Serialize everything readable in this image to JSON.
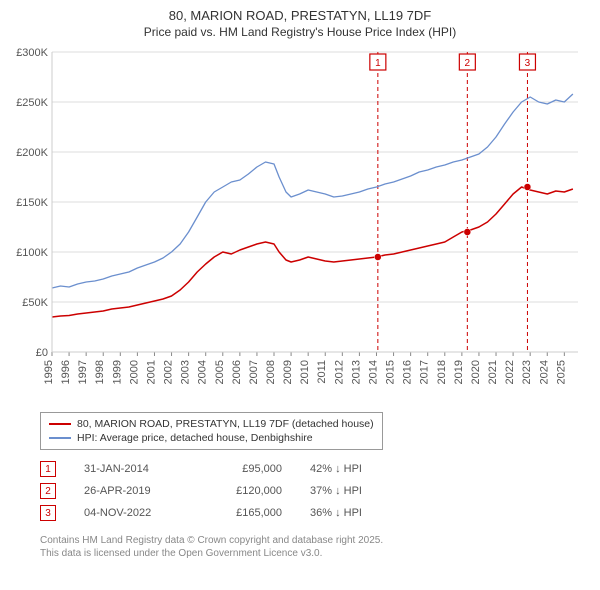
{
  "title": "80, MARION ROAD, PRESTATYN, LL19 7DF",
  "subtitle": "Price paid vs. HM Land Registry's House Price Index (HPI)",
  "chart": {
    "type": "line",
    "background_color": "#ffffff",
    "grid_color": "#dddddd",
    "x_range": [
      1995,
      2025.8
    ],
    "y_range": [
      0,
      300000
    ],
    "y_ticks": [
      0,
      50000,
      100000,
      150000,
      200000,
      250000,
      300000
    ],
    "y_tick_labels": [
      "£0",
      "£50K",
      "£100K",
      "£150K",
      "£200K",
      "£250K",
      "£300K"
    ],
    "x_ticks": [
      1995,
      1996,
      1997,
      1998,
      1999,
      2000,
      2001,
      2002,
      2003,
      2004,
      2005,
      2006,
      2007,
      2008,
      2009,
      2010,
      2011,
      2012,
      2013,
      2014,
      2015,
      2016,
      2017,
      2018,
      2019,
      2020,
      2021,
      2022,
      2023,
      2024,
      2025
    ],
    "series": [
      {
        "id": "hpi",
        "label": "HPI: Average price, detached house, Denbighshire",
        "color": "#6b8fce",
        "line_width": 1.3,
        "data": [
          [
            1995,
            64000
          ],
          [
            1995.5,
            66000
          ],
          [
            1996,
            65000
          ],
          [
            1996.5,
            68000
          ],
          [
            1997,
            70000
          ],
          [
            1997.5,
            71000
          ],
          [
            1998,
            73000
          ],
          [
            1998.5,
            76000
          ],
          [
            1999,
            78000
          ],
          [
            1999.5,
            80000
          ],
          [
            2000,
            84000
          ],
          [
            2000.5,
            87000
          ],
          [
            2001,
            90000
          ],
          [
            2001.5,
            94000
          ],
          [
            2002,
            100000
          ],
          [
            2002.5,
            108000
          ],
          [
            2003,
            120000
          ],
          [
            2003.5,
            135000
          ],
          [
            2004,
            150000
          ],
          [
            2004.5,
            160000
          ],
          [
            2005,
            165000
          ],
          [
            2005.5,
            170000
          ],
          [
            2006,
            172000
          ],
          [
            2006.5,
            178000
          ],
          [
            2007,
            185000
          ],
          [
            2007.5,
            190000
          ],
          [
            2008,
            188000
          ],
          [
            2008.3,
            175000
          ],
          [
            2008.7,
            160000
          ],
          [
            2009,
            155000
          ],
          [
            2009.5,
            158000
          ],
          [
            2010,
            162000
          ],
          [
            2010.5,
            160000
          ],
          [
            2011,
            158000
          ],
          [
            2011.5,
            155000
          ],
          [
            2012,
            156000
          ],
          [
            2012.5,
            158000
          ],
          [
            2013,
            160000
          ],
          [
            2013.5,
            163000
          ],
          [
            2014,
            165000
          ],
          [
            2014.5,
            168000
          ],
          [
            2015,
            170000
          ],
          [
            2015.5,
            173000
          ],
          [
            2016,
            176000
          ],
          [
            2016.5,
            180000
          ],
          [
            2017,
            182000
          ],
          [
            2017.5,
            185000
          ],
          [
            2018,
            187000
          ],
          [
            2018.5,
            190000
          ],
          [
            2019,
            192000
          ],
          [
            2019.5,
            195000
          ],
          [
            2020,
            198000
          ],
          [
            2020.5,
            205000
          ],
          [
            2021,
            215000
          ],
          [
            2021.5,
            228000
          ],
          [
            2022,
            240000
          ],
          [
            2022.5,
            250000
          ],
          [
            2023,
            255000
          ],
          [
            2023.5,
            250000
          ],
          [
            2024,
            248000
          ],
          [
            2024.5,
            252000
          ],
          [
            2025,
            250000
          ],
          [
            2025.5,
            258000
          ]
        ]
      },
      {
        "id": "property",
        "label": "80, MARION ROAD, PRESTATYN, LL19 7DF (detached house)",
        "color": "#cc0000",
        "line_width": 1.5,
        "data": [
          [
            1995,
            35000
          ],
          [
            1995.5,
            36000
          ],
          [
            1996,
            36500
          ],
          [
            1996.5,
            38000
          ],
          [
            1997,
            39000
          ],
          [
            1997.5,
            40000
          ],
          [
            1998,
            41000
          ],
          [
            1998.5,
            43000
          ],
          [
            1999,
            44000
          ],
          [
            1999.5,
            45000
          ],
          [
            2000,
            47000
          ],
          [
            2000.5,
            49000
          ],
          [
            2001,
            51000
          ],
          [
            2001.5,
            53000
          ],
          [
            2002,
            56000
          ],
          [
            2002.5,
            62000
          ],
          [
            2003,
            70000
          ],
          [
            2003.5,
            80000
          ],
          [
            2004,
            88000
          ],
          [
            2004.5,
            95000
          ],
          [
            2005,
            100000
          ],
          [
            2005.5,
            98000
          ],
          [
            2006,
            102000
          ],
          [
            2006.5,
            105000
          ],
          [
            2007,
            108000
          ],
          [
            2007.5,
            110000
          ],
          [
            2008,
            108000
          ],
          [
            2008.3,
            100000
          ],
          [
            2008.7,
            92000
          ],
          [
            2009,
            90000
          ],
          [
            2009.5,
            92000
          ],
          [
            2010,
            95000
          ],
          [
            2010.5,
            93000
          ],
          [
            2011,
            91000
          ],
          [
            2011.5,
            90000
          ],
          [
            2012,
            91000
          ],
          [
            2012.5,
            92000
          ],
          [
            2013,
            93000
          ],
          [
            2013.5,
            94000
          ],
          [
            2014,
            95000
          ],
          [
            2014.5,
            97000
          ],
          [
            2015,
            98000
          ],
          [
            2015.5,
            100000
          ],
          [
            2016,
            102000
          ],
          [
            2016.5,
            104000
          ],
          [
            2017,
            106000
          ],
          [
            2017.5,
            108000
          ],
          [
            2018,
            110000
          ],
          [
            2018.5,
            115000
          ],
          [
            2019,
            120000
          ],
          [
            2019.5,
            122000
          ],
          [
            2020,
            125000
          ],
          [
            2020.5,
            130000
          ],
          [
            2021,
            138000
          ],
          [
            2021.5,
            148000
          ],
          [
            2022,
            158000
          ],
          [
            2022.5,
            165000
          ],
          [
            2023,
            162000
          ],
          [
            2023.5,
            160000
          ],
          [
            2024,
            158000
          ],
          [
            2024.5,
            161000
          ],
          [
            2025,
            160000
          ],
          [
            2025.5,
            163000
          ]
        ]
      }
    ],
    "sale_markers": [
      {
        "n": "1",
        "x": 2014.08,
        "y": 95000,
        "box_color": "#cc0000"
      },
      {
        "n": "2",
        "x": 2019.32,
        "y": 120000,
        "box_color": "#cc0000"
      },
      {
        "n": "3",
        "x": 2022.84,
        "y": 165000,
        "box_color": "#cc0000"
      }
    ],
    "marker_dash": "4,3"
  },
  "legend": {
    "border_color": "#999999",
    "items": [
      {
        "color": "#cc0000",
        "label": "80, MARION ROAD, PRESTATYN, LL19 7DF (detached house)"
      },
      {
        "color": "#6b8fce",
        "label": "HPI: Average price, detached house, Denbighshire"
      }
    ]
  },
  "sales": [
    {
      "n": "1",
      "date": "31-JAN-2014",
      "price": "£95,000",
      "delta": "42% ↓ HPI"
    },
    {
      "n": "2",
      "date": "26-APR-2019",
      "price": "£120,000",
      "delta": "37% ↓ HPI"
    },
    {
      "n": "3",
      "date": "04-NOV-2022",
      "price": "£165,000",
      "delta": "36% ↓ HPI"
    }
  ],
  "footer": {
    "line1": "Contains HM Land Registry data © Crown copyright and database right 2025.",
    "line2": "This data is licensed under the Open Government Licence v3.0."
  }
}
